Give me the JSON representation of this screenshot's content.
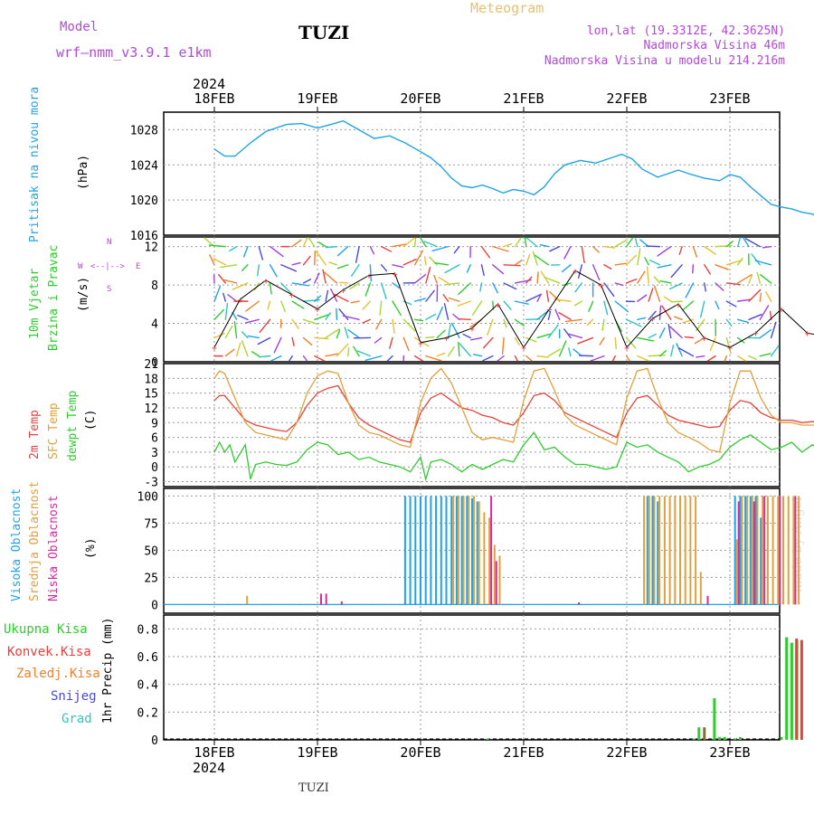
{
  "header": {
    "model_label": "Model",
    "model_name": "wrf—nmm_v3.9.1 e1km",
    "location": "TUZI",
    "product": "Meteogram",
    "lonlat": "lon,lat (19.3312E, 42.3625N)",
    "altitude": "Nadmorska Visina 46m",
    "model_altitude": "Nadmorska Visina u modelu 214.216m",
    "footer_location": "TUZI",
    "watermark": "made by Angel"
  },
  "colors": {
    "pressure": "#1fa3e8",
    "temp2m": "#e8403a",
    "sfc_temp": "#e0a03c",
    "dewpoint": "#2ecc2e",
    "high_cloud": "#1fa3e8",
    "mid_cloud": "#e0a03c",
    "low_cloud": "#d62d9a",
    "total_precip": "#2ecc2e",
    "conv_precip": "#e8403a",
    "freezing_precip": "#f07f2a",
    "snow": "#4a4ad8",
    "hail": "#2ec4c4",
    "header_purple": "#b04ad8",
    "header_gold": "#e8c070"
  },
  "chart_data": [
    {
      "type": "line",
      "name": "pressure",
      "ylabel_lines": [
        "Pritisak na nivou mora",
        "(hPa)"
      ],
      "ylim": [
        1016,
        1030
      ],
      "yticks": [
        1016,
        1020,
        1024,
        1028
      ],
      "x_day": [
        0,
        0.1,
        0.2,
        0.35,
        0.5,
        0.7,
        0.85,
        1.0,
        1.1,
        1.25,
        1.4,
        1.55,
        1.7,
        1.85,
        2.0,
        2.1,
        2.2,
        2.3,
        2.4,
        2.5,
        2.6,
        2.7,
        2.8,
        2.9,
        3.0,
        3.1,
        3.2,
        3.3,
        3.4,
        3.55,
        3.7,
        3.85,
        3.95,
        4.05,
        4.15,
        4.3,
        4.5,
        4.6,
        4.75,
        4.9,
        5.0,
        5.1,
        5.2,
        5.3,
        5.4,
        5.5,
        5.6,
        5.7,
        5.8,
        5.9,
        6.0,
        6.1,
        6.2,
        6.3,
        6.4,
        6.5,
        6.6,
        6.65
      ],
      "values": [
        1025.8,
        1025.0,
        1025.0,
        1026.5,
        1027.8,
        1028.6,
        1028.7,
        1028.2,
        1028.5,
        1029.0,
        1028.0,
        1027.0,
        1027.3,
        1026.5,
        1025.5,
        1024.8,
        1023.8,
        1022.5,
        1021.6,
        1021.4,
        1021.7,
        1021.3,
        1020.8,
        1021.2,
        1021.0,
        1020.6,
        1021.5,
        1023.0,
        1024.0,
        1024.5,
        1024.2,
        1024.8,
        1025.2,
        1024.7,
        1023.5,
        1022.6,
        1023.4,
        1023.0,
        1022.5,
        1022.2,
        1022.9,
        1022.6,
        1021.5,
        1020.5,
        1019.5,
        1019.2,
        1019.0,
        1018.6,
        1018.4,
        1017.8,
        1017.3,
        1017.3,
        1017.2,
        1017.0,
        1016.8,
        1016.5,
        1016.2,
        1016.0
      ]
    },
    {
      "type": "scatter",
      "name": "wind",
      "ylabel_lines": [
        "10m Vjetar",
        "Brzina i Pravac",
        "(m/s)"
      ],
      "compass": [
        "N",
        "S",
        "W",
        "E",
        "<--|-->"
      ],
      "ylim": [
        0,
        13
      ],
      "yticks": [
        0,
        4,
        8,
        12
      ],
      "x_day": [
        0,
        0.25,
        0.5,
        0.75,
        1.0,
        1.25,
        1.5,
        1.75,
        2.0,
        2.25,
        2.5,
        2.75,
        3.0,
        3.25,
        3.5,
        3.75,
        4.0,
        4.25,
        4.5,
        4.75,
        5.0,
        5.25,
        5.5,
        5.75,
        6.0,
        6.25,
        6.5,
        6.65
      ],
      "speed_values": [
        1.5,
        6.5,
        8.5,
        7.0,
        5.5,
        7.5,
        9.0,
        9.2,
        2.0,
        2.5,
        3.5,
        6.0,
        1.5,
        5.5,
        9.5,
        8.0,
        1.5,
        4.5,
        6.0,
        2.5,
        1.5,
        3.0,
        5.5,
        3.0,
        2.5,
        6.5,
        8.5,
        9.5
      ]
    },
    {
      "type": "line",
      "name": "temperature",
      "ylabel_lines": [
        "2m Temp",
        "SFC Temp",
        "dewpt Temp",
        "(C)"
      ],
      "ylim": [
        -4,
        21
      ],
      "yticks": [
        -3,
        0,
        3,
        6,
        9,
        12,
        15,
        18,
        21
      ],
      "series": [
        {
          "name": "2m Temp",
          "x_day": [
            0,
            0.05,
            0.1,
            0.2,
            0.3,
            0.4,
            0.5,
            0.6,
            0.7,
            0.8,
            0.9,
            1.0,
            1.1,
            1.2,
            1.3,
            1.4,
            1.5,
            1.6,
            1.7,
            1.8,
            1.9,
            2.0,
            2.1,
            2.2,
            2.3,
            2.4,
            2.5,
            2.6,
            2.7,
            2.8,
            2.9,
            3.0,
            3.1,
            3.2,
            3.3,
            3.4,
            3.5,
            3.6,
            3.7,
            3.8,
            3.9,
            4.0,
            4.1,
            4.2,
            4.3,
            4.4,
            4.5,
            4.6,
            4.7,
            4.8,
            4.9,
            5.0,
            5.1,
            5.2,
            5.3,
            5.4,
            5.5,
            5.6,
            5.7,
            5.8,
            5.9,
            6.0,
            6.1,
            6.2,
            6.3,
            6.4,
            6.5,
            6.6,
            6.65
          ],
          "values": [
            13.5,
            14.5,
            14.5,
            12.0,
            9.5,
            8.5,
            8.0,
            7.5,
            7.2,
            9.0,
            12.5,
            15.0,
            16.0,
            16.5,
            13.0,
            10.0,
            8.5,
            7.5,
            6.5,
            5.5,
            5.0,
            11.0,
            14.0,
            15.0,
            13.5,
            12.0,
            11.5,
            10.5,
            10.0,
            9.0,
            8.5,
            11.0,
            14.5,
            15.0,
            13.5,
            11.0,
            10.0,
            9.0,
            8.0,
            7.0,
            6.0,
            11.0,
            14.0,
            14.5,
            12.5,
            10.5,
            9.5,
            9.0,
            8.5,
            8.0,
            8.2,
            11.5,
            13.5,
            13.0,
            11.0,
            10.0,
            9.5,
            9.5,
            9.0,
            9.2,
            9.0,
            10.0,
            10.5,
            13.0,
            11.0,
            12.0,
            13.0,
            13.2,
            13.2
          ]
        },
        {
          "name": "SFC Temp",
          "x_day": [
            0,
            0.05,
            0.1,
            0.2,
            0.3,
            0.4,
            0.5,
            0.6,
            0.7,
            0.8,
            0.9,
            1.0,
            1.1,
            1.2,
            1.3,
            1.4,
            1.5,
            1.6,
            1.7,
            1.8,
            1.9,
            2.0,
            2.1,
            2.2,
            2.3,
            2.4,
            2.5,
            2.6,
            2.7,
            2.8,
            2.9,
            3.0,
            3.1,
            3.2,
            3.3,
            3.4,
            3.5,
            3.6,
            3.7,
            3.8,
            3.9,
            4.0,
            4.1,
            4.2,
            4.3,
            4.4,
            4.5,
            4.6,
            4.7,
            4.8,
            4.9,
            5.0,
            5.1,
            5.2,
            5.3,
            5.4,
            5.5,
            5.6,
            5.7,
            5.8,
            5.9,
            6.0,
            6.1,
            6.2,
            6.3,
            6.4,
            6.5,
            6.6,
            6.65
          ],
          "values": [
            18.0,
            19.5,
            19.0,
            14.0,
            9.0,
            7.0,
            6.5,
            6.0,
            5.5,
            9.0,
            15.0,
            18.5,
            19.5,
            19.0,
            13.0,
            8.5,
            7.0,
            6.5,
            5.5,
            4.5,
            4.0,
            13.0,
            18.0,
            20.0,
            17.0,
            12.0,
            7.0,
            5.5,
            6.0,
            5.5,
            5.0,
            13.5,
            19.5,
            20.0,
            15.5,
            10.5,
            8.5,
            7.5,
            6.5,
            5.5,
            4.5,
            14.0,
            19.5,
            20.0,
            14.0,
            9.0,
            7.0,
            6.0,
            5.0,
            3.5,
            3.0,
            13.0,
            19.5,
            19.5,
            14.0,
            10.5,
            9.0,
            9.0,
            8.5,
            8.5,
            8.5,
            10.5,
            11.0,
            15.0,
            12.0,
            14.0,
            15.5,
            15.8,
            15.5
          ]
        },
        {
          "name": "dewpt Temp",
          "x_day": [
            0,
            0.05,
            0.1,
            0.15,
            0.2,
            0.3,
            0.35,
            0.4,
            0.5,
            0.6,
            0.7,
            0.8,
            0.9,
            1.0,
            1.1,
            1.2,
            1.3,
            1.4,
            1.5,
            1.6,
            1.7,
            1.8,
            1.9,
            2.0,
            2.05,
            2.1,
            2.2,
            2.3,
            2.4,
            2.5,
            2.6,
            2.7,
            2.8,
            2.9,
            3.0,
            3.1,
            3.2,
            3.3,
            3.4,
            3.5,
            3.6,
            3.7,
            3.8,
            3.9,
            4.0,
            4.1,
            4.2,
            4.3,
            4.4,
            4.5,
            4.6,
            4.7,
            4.8,
            4.9,
            5.0,
            5.1,
            5.2,
            5.3,
            5.4,
            5.5,
            5.6,
            5.7,
            5.8,
            5.9,
            6.0,
            6.1,
            6.2,
            6.3,
            6.4,
            6.5,
            6.6,
            6.65
          ],
          "values": [
            3.0,
            5.0,
            3.0,
            4.5,
            1.0,
            4.5,
            -2.5,
            0.5,
            1.0,
            0.5,
            0.3,
            1.0,
            3.5,
            5.0,
            4.5,
            2.5,
            3.0,
            1.5,
            2.0,
            1.0,
            0.5,
            0.0,
            -1.0,
            2.0,
            -2.5,
            1.0,
            1.5,
            0.5,
            -1.0,
            0.5,
            -0.5,
            0.5,
            1.5,
            1.0,
            4.5,
            7.0,
            3.5,
            4.0,
            2.0,
            0.5,
            0.5,
            0.0,
            -0.5,
            0.0,
            5.0,
            4.0,
            4.5,
            3.0,
            2.0,
            1.0,
            -1.0,
            0.0,
            0.5,
            1.5,
            4.0,
            5.5,
            6.5,
            5.0,
            3.5,
            4.0,
            5.0,
            3.0,
            4.5,
            3.5,
            5.5,
            4.5,
            7.0,
            6.5,
            8.0,
            8.5,
            9.5,
            9.5
          ]
        }
      ]
    },
    {
      "type": "bar",
      "name": "clouds",
      "ylabel_lines": [
        "Visoka Oblacnost",
        "Srednja Oblacnost",
        "Niska Oblacnost",
        "(%)"
      ],
      "ylim": [
        -8,
        107
      ],
      "yticks": [
        0,
        25,
        50,
        75,
        100
      ],
      "series": [
        {
          "name": "Visoka Oblacnost",
          "x_day": [
            1.85,
            1.9,
            1.95,
            2.0,
            2.05,
            2.1,
            2.15,
            2.2,
            2.25,
            2.3,
            2.35,
            2.4,
            2.45,
            2.5,
            2.55,
            4.2,
            4.25,
            4.3,
            5.05,
            5.1,
            5.15,
            5.2,
            5.25,
            5.3
          ],
          "values": [
            100,
            100,
            100,
            100,
            100,
            100,
            100,
            100,
            100,
            100,
            100,
            100,
            100,
            98,
            95,
            100,
            100,
            95,
            100,
            100,
            100,
            100,
            100,
            80
          ]
        },
        {
          "name": "Srednja Oblacnost",
          "x_day": [
            0.3,
            2.3,
            2.35,
            2.4,
            2.45,
            2.5,
            2.55,
            2.6,
            2.65,
            2.7,
            2.75,
            4.15,
            4.2,
            4.25,
            4.3,
            4.35,
            4.4,
            4.45,
            4.5,
            4.55,
            4.6,
            4.65,
            4.7,
            5.05,
            5.1,
            5.15,
            5.2,
            5.25,
            5.3,
            5.35,
            5.4,
            5.45,
            5.5,
            5.55,
            5.6,
            5.65
          ],
          "values": [
            8,
            100,
            100,
            100,
            100,
            100,
            95,
            85,
            80,
            55,
            45,
            100,
            100,
            100,
            100,
            100,
            100,
            100,
            100,
            100,
            100,
            100,
            30,
            60,
            100,
            100,
            100,
            100,
            100,
            100,
            100,
            100,
            100,
            100,
            100,
            100
          ]
        },
        {
          "name": "Niska Oblacnost",
          "x_day": [
            1.0,
            1.05,
            1.2,
            2.65,
            2.7,
            3.5,
            4.75,
            5.05,
            5.2,
            5.3,
            5.45,
            5.6
          ],
          "values": [
            10,
            10,
            3,
            100,
            40,
            2,
            8,
            95,
            95,
            100,
            100,
            100
          ]
        }
      ]
    },
    {
      "type": "bar",
      "name": "precip",
      "ylabel_lines": [
        "1hr Precip (mm)"
      ],
      "legend": [
        "Ukupna Kisa",
        "Konvek.Kisa",
        "Zaledj.Kisa",
        "Snijeg",
        "Grad"
      ],
      "ylim": [
        0,
        0.9
      ],
      "yticks": [
        0,
        0.2,
        0.4,
        0.6,
        0.8
      ],
      "series": [
        {
          "name": "Ukupna Kisa",
          "x_day": [
            2.65,
            4.65,
            4.7,
            4.85,
            4.9,
            4.95,
            5.05,
            5.1,
            5.5,
            5.55,
            5.6,
            5.65
          ],
          "values": [
            0.01,
            0.01,
            0.09,
            0.3,
            0.02,
            0.02,
            0.01,
            0.02,
            0.02,
            0.74,
            0.7,
            0.72
          ]
        },
        {
          "name": "Konvek.Kisa",
          "x_day": [
            5.62,
            5.67
          ],
          "values": [
            0.73,
            0.72
          ]
        },
        {
          "name": "Zaledj.Kisa",
          "x_day": [
            4.7
          ],
          "values": [
            0.09
          ]
        }
      ]
    }
  ],
  "time_axis": {
    "day_labels": [
      "18FEB",
      "19FEB",
      "20FEB",
      "21FEB",
      "22FEB",
      "23FEB"
    ],
    "year_label": "2024"
  }
}
